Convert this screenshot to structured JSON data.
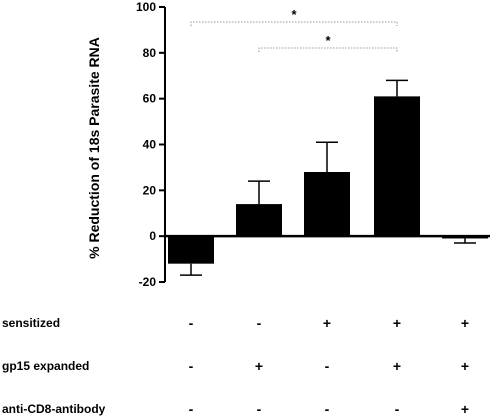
{
  "chart_data": {
    "type": "bar",
    "ylabel": "% Reduction of 18s Parasite RNA",
    "ylim": [
      -20,
      100
    ],
    "yticks": [
      "-20",
      "0",
      "20",
      "40",
      "60",
      "80",
      "100"
    ],
    "ytick_values": [
      -20,
      0,
      20,
      40,
      60,
      80,
      100
    ],
    "bar_color": "#000000",
    "values": [
      -12,
      14,
      28,
      61,
      -1
    ],
    "errors": [
      5,
      10,
      13,
      7,
      2
    ],
    "conditions": [
      {
        "label": "sensitized",
        "marks": [
          "-",
          "-",
          "+",
          "+",
          "+"
        ]
      },
      {
        "label": "gp15 expanded",
        "marks": [
          "-",
          "+",
          "-",
          "+",
          "+"
        ]
      },
      {
        "label": "anti-CD8-antibody",
        "marks": [
          "-",
          "-",
          "-",
          "-",
          "+"
        ]
      }
    ],
    "significance": [
      {
        "from": 0,
        "to": 3,
        "label": "*"
      },
      {
        "from": 1,
        "to": 3,
        "label": "*"
      }
    ]
  }
}
